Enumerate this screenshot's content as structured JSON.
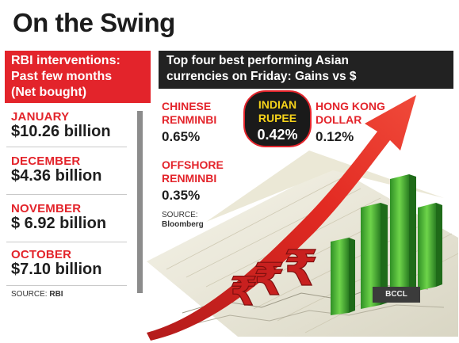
{
  "title": "On the Swing",
  "rbi": {
    "header": [
      "RBI interventions:",
      "Past few months",
      "(Net bought)"
    ],
    "entries": [
      {
        "month": "JANUARY",
        "amount": "$10.26 billion"
      },
      {
        "month": "DECEMBER",
        "amount": "$4.36 billion"
      },
      {
        "month": "NOVEMBER",
        "amount": "$ 6.92 billion"
      },
      {
        "month": "OCTOBER",
        "amount": "$7.10 billion"
      }
    ],
    "source_prefix": "SOURCE: ",
    "source_name": "RBI"
  },
  "currencies": {
    "header": [
      "Top four best performing Asian",
      "currencies on Friday: Gains vs $"
    ],
    "items": {
      "chinese": {
        "name": [
          "CHINESE",
          "RENMINBI"
        ],
        "value": "0.65%"
      },
      "rupee": {
        "name": [
          "INDIAN",
          "RUPEE"
        ],
        "value": "0.42%"
      },
      "hongkong": {
        "name": [
          "HONG KONG",
          "DOLLAR"
        ],
        "value": "0.12%"
      },
      "offshore": {
        "name": [
          "OFFSHORE",
          "RENMINBI"
        ],
        "value": "0.35%"
      }
    },
    "source_prefix": "SOURCE:",
    "source_name": "Bloomberg"
  },
  "credit": "BCCL",
  "chart_data": {
    "type": "table",
    "title": "On the Swing",
    "tables": [
      {
        "title": "RBI interventions: Past few months (Net bought)",
        "rows": [
          {
            "month": "JANUARY",
            "value": 10.26,
            "unit": "$ billion"
          },
          {
            "month": "DECEMBER",
            "value": 4.36,
            "unit": "$ billion"
          },
          {
            "month": "NOVEMBER",
            "value": 6.92,
            "unit": "$ billion"
          },
          {
            "month": "OCTOBER",
            "value": 7.1,
            "unit": "$ billion"
          }
        ],
        "source": "RBI"
      },
      {
        "title": "Top four best performing Asian currencies on Friday: Gains vs $",
        "rows": [
          {
            "currency": "CHINESE RENMINBI",
            "gain_pct": 0.65
          },
          {
            "currency": "INDIAN RUPEE",
            "gain_pct": 0.42
          },
          {
            "currency": "HONG KONG DOLLAR",
            "gain_pct": 0.12
          },
          {
            "currency": "OFFSHORE RENMINBI",
            "gain_pct": 0.35
          }
        ],
        "source": "Bloomberg"
      }
    ],
    "colors": {
      "accent": "#e3242b",
      "highlight": "#f6d31a",
      "bars": "#3ea833",
      "dark": "#222222"
    }
  }
}
